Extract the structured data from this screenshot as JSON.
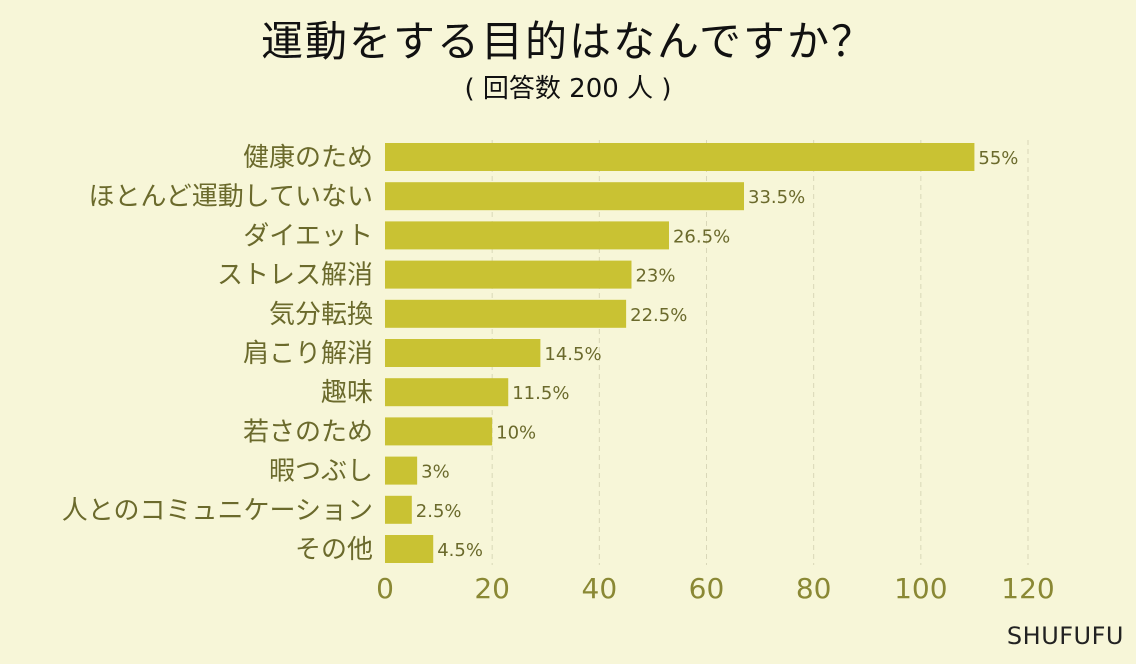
{
  "title": "運動をする目的はなんですか？",
  "subtitle": "( 回答数 200 人 )",
  "brand": "SHUFUFU",
  "colors": {
    "background": "#f7f6d8",
    "bar": "#c9c233",
    "label": "#6b6a2c",
    "tick": "#8a8834",
    "grid": "#d9d7b8"
  },
  "chart_data": {
    "type": "bar",
    "orientation": "horizontal",
    "categories": [
      "健康のため",
      "ほとんど運動していない",
      "ダイエット",
      "ストレス解消",
      "気分転換",
      "肩こり解消",
      "趣味",
      "若さのため",
      "暇つぶし",
      "人とのコミュニケーション",
      "その他"
    ],
    "values": [
      110,
      67,
      53,
      46,
      45,
      29,
      23,
      20,
      6,
      5,
      9
    ],
    "value_labels": [
      "55%",
      "33.5%",
      "26.5%",
      "23%",
      "22.5%",
      "14.5%",
      "11.5%",
      "10%",
      "3%",
      "2.5%",
      "4.5%"
    ],
    "xlim": [
      0,
      120
    ],
    "xticks": [
      0,
      20,
      40,
      60,
      80,
      100,
      120
    ],
    "grid": "vertical dashed",
    "legend": "none"
  }
}
